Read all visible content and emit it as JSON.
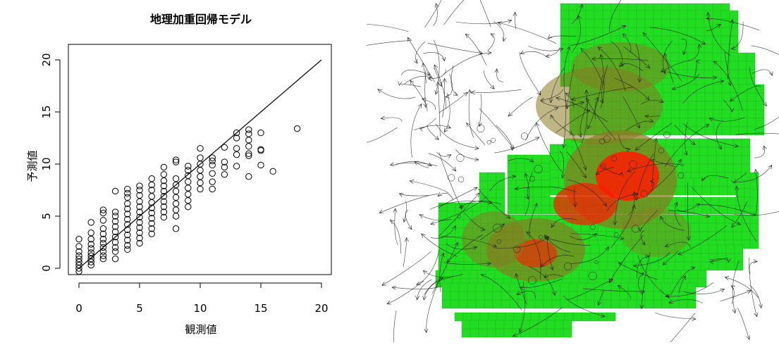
{
  "chart_data": [
    {
      "type": "scatter",
      "title": "地理加重回帰モデル",
      "xlabel": "観測値",
      "ylabel": "予測値",
      "xlim": [
        0,
        20
      ],
      "ylim": [
        0,
        20
      ],
      "xticks": [
        "0",
        "5",
        "10",
        "15",
        "20"
      ],
      "yticks": [
        "0",
        "5",
        "10",
        "15",
        "20"
      ],
      "reference_line": {
        "from": [
          0,
          0
        ],
        "to": [
          20,
          20
        ]
      },
      "marker": "open-circle",
      "grid": false,
      "points": [
        [
          0,
          -0.3
        ],
        [
          0,
          0.0
        ],
        [
          0,
          0.3
        ],
        [
          0,
          0.6
        ],
        [
          0,
          0.9
        ],
        [
          0,
          1.2
        ],
        [
          0,
          1.6
        ],
        [
          0,
          2.1
        ],
        [
          0,
          2.8
        ],
        [
          1,
          0.3
        ],
        [
          1,
          0.6
        ],
        [
          1,
          0.9
        ],
        [
          1,
          1.2
        ],
        [
          1,
          1.5
        ],
        [
          1,
          1.9
        ],
        [
          1,
          2.3
        ],
        [
          1,
          2.8
        ],
        [
          1,
          3.4
        ],
        [
          1,
          4.4
        ],
        [
          2,
          0.9
        ],
        [
          2,
          1.2
        ],
        [
          2,
          1.6
        ],
        [
          2,
          2.0
        ],
        [
          2,
          2.4
        ],
        [
          2,
          2.8
        ],
        [
          2,
          3.3
        ],
        [
          2,
          3.8
        ],
        [
          2,
          4.6
        ],
        [
          2,
          5.3
        ],
        [
          2,
          5.6
        ],
        [
          3,
          0.9
        ],
        [
          3,
          1.6
        ],
        [
          3,
          2.0
        ],
        [
          3,
          2.5
        ],
        [
          3,
          3.0
        ],
        [
          3,
          3.5
        ],
        [
          3,
          4.0
        ],
        [
          3,
          4.5
        ],
        [
          3,
          5.0
        ],
        [
          3,
          5.4
        ],
        [
          3,
          7.4
        ],
        [
          4,
          1.8
        ],
        [
          4,
          2.2
        ],
        [
          4,
          2.7
        ],
        [
          4,
          3.2
        ],
        [
          4,
          3.7
        ],
        [
          4,
          4.2
        ],
        [
          4,
          4.7
        ],
        [
          4,
          5.2
        ],
        [
          4,
          5.7
        ],
        [
          4,
          6.2
        ],
        [
          4,
          6.8
        ],
        [
          4,
          7.2
        ],
        [
          4,
          7.6
        ],
        [
          5,
          2.4
        ],
        [
          5,
          2.9
        ],
        [
          5,
          3.4
        ],
        [
          5,
          3.9
        ],
        [
          5,
          4.4
        ],
        [
          5,
          4.9
        ],
        [
          5,
          5.4
        ],
        [
          5,
          5.9
        ],
        [
          5,
          6.4
        ],
        [
          5,
          7.0
        ],
        [
          5,
          7.5
        ],
        [
          5,
          7.9
        ],
        [
          6,
          3.3
        ],
        [
          6,
          3.8
        ],
        [
          6,
          4.3
        ],
        [
          6,
          4.8
        ],
        [
          6,
          5.3
        ],
        [
          6,
          5.8
        ],
        [
          6,
          6.3
        ],
        [
          6,
          6.9
        ],
        [
          6,
          7.5
        ],
        [
          6,
          8.0
        ],
        [
          6,
          8.6
        ],
        [
          7,
          4.9
        ],
        [
          7,
          5.4
        ],
        [
          7,
          5.9
        ],
        [
          7,
          6.4
        ],
        [
          7,
          6.9
        ],
        [
          7,
          7.4
        ],
        [
          7,
          7.9
        ],
        [
          7,
          8.4
        ],
        [
          7,
          9.0
        ],
        [
          7,
          9.7
        ],
        [
          8,
          3.8
        ],
        [
          8,
          5.0
        ],
        [
          8,
          5.6
        ],
        [
          8,
          6.2
        ],
        [
          8,
          6.8
        ],
        [
          8,
          7.4
        ],
        [
          8,
          8.0
        ],
        [
          8,
          8.6
        ],
        [
          8,
          10.2
        ],
        [
          8,
          10.4
        ],
        [
          9,
          5.9
        ],
        [
          9,
          6.5
        ],
        [
          9,
          7.1
        ],
        [
          9,
          7.7
        ],
        [
          9,
          8.3
        ],
        [
          9,
          8.9
        ],
        [
          9,
          9.4
        ],
        [
          9,
          9.8
        ],
        [
          10,
          7.6
        ],
        [
          10,
          8.2
        ],
        [
          10,
          8.8
        ],
        [
          10,
          9.4
        ],
        [
          10,
          10.0
        ],
        [
          10,
          10.6
        ],
        [
          10,
          11.5
        ],
        [
          11,
          7.6
        ],
        [
          11,
          8.3
        ],
        [
          11,
          9.1
        ],
        [
          11,
          9.9
        ],
        [
          11,
          10.3
        ],
        [
          11,
          10.6
        ],
        [
          12,
          9.0
        ],
        [
          12,
          9.7
        ],
        [
          12,
          10.2
        ],
        [
          12,
          11.6
        ],
        [
          13,
          9.8
        ],
        [
          13,
          10.9
        ],
        [
          13,
          11.5
        ],
        [
          13,
          12.5
        ],
        [
          13,
          13.0
        ],
        [
          14,
          8.8
        ],
        [
          14,
          10.8
        ],
        [
          14,
          11.0
        ],
        [
          14,
          11.7
        ],
        [
          14,
          12.3
        ],
        [
          14,
          12.9
        ],
        [
          14,
          13.3
        ],
        [
          15,
          9.9
        ],
        [
          15,
          11.3
        ],
        [
          15,
          11.4
        ],
        [
          15,
          13.0
        ],
        [
          16,
          9.3
        ],
        [
          18,
          13.4
        ]
      ]
    }
  ],
  "map": {
    "type": "flow-map",
    "colors": {
      "low_density": "#22dd22",
      "mid_density": "#8a7a22",
      "high_density": "#ff1a00",
      "grid_lines": "#1fb51f",
      "flow_lines": "#1a1a1a"
    }
  }
}
